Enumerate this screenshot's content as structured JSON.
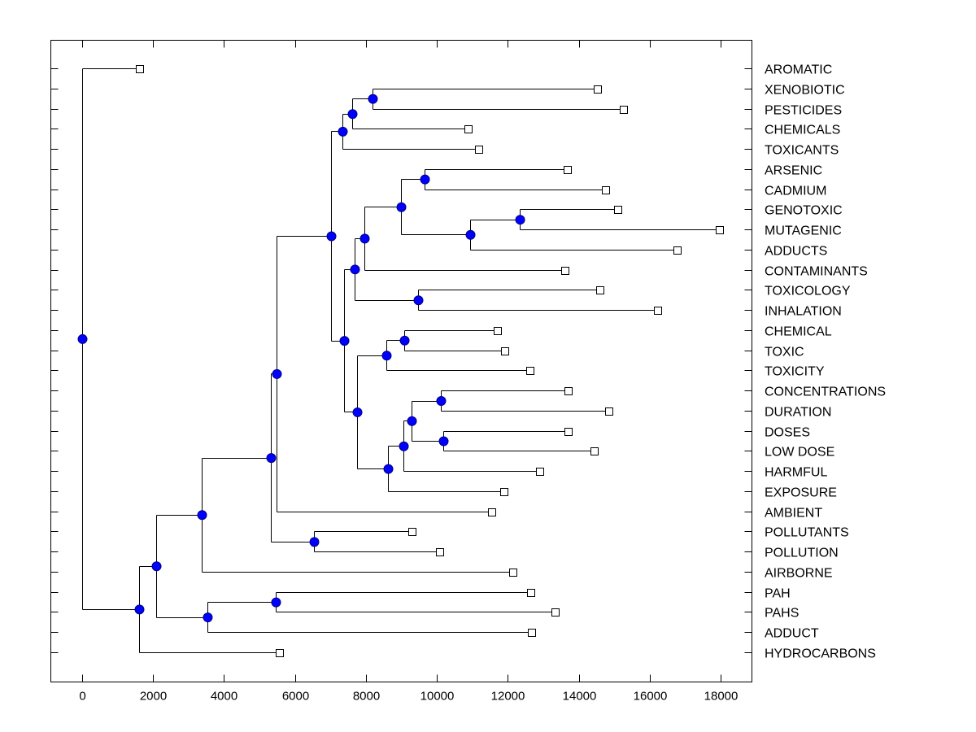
{
  "chart_data": {
    "type": "dendrogram",
    "title": "",
    "xlabel": "",
    "ylabel": "",
    "xlim": [
      -900,
      18900
    ],
    "x_ticks": [
      0,
      2000,
      4000,
      6000,
      8000,
      10000,
      12000,
      14000,
      16000,
      18000
    ],
    "x_tick_labels": [
      "0",
      "2000",
      "4000",
      "6000",
      "8000",
      "10000",
      "12000",
      "14000",
      "16000",
      "18000"
    ],
    "grid": false,
    "legend": "none",
    "colors": {
      "internal_node": "#0000ff",
      "leaf": "#ffffff",
      "line": "#000000"
    },
    "leaves": [
      {
        "label": "AROMATIC",
        "value": 1605
      },
      {
        "label": "XENOBIOTIC",
        "value": 14515
      },
      {
        "label": "PESTICIDES",
        "value": 15249
      },
      {
        "label": "CHEMICALS",
        "value": 10869
      },
      {
        "label": "TOXICANTS",
        "value": 11167
      },
      {
        "label": "ARSENIC",
        "value": 13667
      },
      {
        "label": "CADMIUM",
        "value": 14744
      },
      {
        "label": "GENOTOXIC",
        "value": 15088
      },
      {
        "label": "MUTAGENIC",
        "value": 17955
      },
      {
        "label": "ADDUCTS",
        "value": 16762
      },
      {
        "label": "CONTAMINANTS",
        "value": 13598
      },
      {
        "label": "TOXICOLOGY",
        "value": 14584
      },
      {
        "label": "INHALATION",
        "value": 16212
      },
      {
        "label": "CHEMICAL",
        "value": 11695
      },
      {
        "label": "TOXIC",
        "value": 11901
      },
      {
        "label": "TOXICITY",
        "value": 12612
      },
      {
        "label": "CONCENTRATIONS",
        "value": 13690
      },
      {
        "label": "DURATION",
        "value": 14836
      },
      {
        "label": "DOSES",
        "value": 13690
      },
      {
        "label": "LOW DOSE",
        "value": 14423
      },
      {
        "label": "HARMFUL",
        "value": 12887
      },
      {
        "label": "EXPOSURE",
        "value": 11878
      },
      {
        "label": "AMBIENT",
        "value": 11534
      },
      {
        "label": "POLLUTANTS",
        "value": 9287
      },
      {
        "label": "POLLUTION",
        "value": 10066
      },
      {
        "label": "AIRBORNE",
        "value": 12130
      },
      {
        "label": "PAH",
        "value": 12635
      },
      {
        "label": "PAHS",
        "value": 13323
      },
      {
        "label": "ADDUCT",
        "value": 12658
      },
      {
        "label": "HYDROCARBONS",
        "value": 5549
      }
    ],
    "tree": {
      "value": 0,
      "children": [
        {
          "leaf": 0
        },
        {
          "value": 1605,
          "children": [
            {
              "value": 2087,
              "children": [
                {
                  "value": 3371,
                  "children": [
                    {
                      "value": 5320,
                      "children": [
                        {
                          "value": 5480,
                          "children": [
                            {
                              "value": 7017,
                              "children": [
                                {
                                  "value": 7338,
                                  "children": [
                                    {
                                      "value": 7613,
                                      "children": [
                                        {
                                          "value": 8186,
                                          "children": [
                                            {
                                              "leaf": 1
                                            },
                                            {
                                              "leaf": 2
                                            }
                                          ]
                                        },
                                        {
                                          "leaf": 3
                                        }
                                      ]
                                    },
                                    {
                                      "leaf": 4
                                    }
                                  ]
                                },
                                {
                                  "value": 7384,
                                  "children": [
                                    {
                                      "value": 7682,
                                      "children": [
                                        {
                                          "value": 7957,
                                          "children": [
                                            {
                                              "value": 8989,
                                              "children": [
                                                {
                                                  "value": 9654,
                                                  "children": [
                                                    {
                                                      "leaf": 5
                                                    },
                                                    {
                                                      "leaf": 6
                                                    }
                                                  ]
                                                },
                                                {
                                                  "value": 10938,
                                                  "children": [
                                                    {
                                                      "value": 12337,
                                                      "children": [
                                                        {
                                                          "leaf": 7
                                                        },
                                                        {
                                                          "leaf": 8
                                                        }
                                                      ]
                                                    },
                                                    {
                                                      "leaf": 9
                                                    }
                                                  ]
                                                }
                                              ]
                                            },
                                            {
                                              "leaf": 10
                                            }
                                          ]
                                        },
                                        {
                                          "value": 9470,
                                          "children": [
                                            {
                                              "leaf": 11
                                            },
                                            {
                                              "leaf": 12
                                            }
                                          ]
                                        }
                                      ]
                                    },
                                    {
                                      "value": 7751,
                                      "children": [
                                        {
                                          "value": 8576,
                                          "children": [
                                            {
                                              "value": 9081,
                                              "children": [
                                                {
                                                  "leaf": 13
                                                },
                                                {
                                                  "leaf": 14
                                                }
                                              ]
                                            },
                                            {
                                              "leaf": 15
                                            }
                                          ]
                                        },
                                        {
                                          "value": 8622,
                                          "children": [
                                            {
                                              "value": 9058,
                                              "children": [
                                                {
                                                  "value": 9287,
                                                  "children": [
                                                    {
                                                      "value": 10112,
                                                      "children": [
                                                        {
                                                          "leaf": 16
                                                        },
                                                        {
                                                          "leaf": 17
                                                        }
                                                      ]
                                                    },
                                                    {
                                                      "value": 10181,
                                                      "children": [
                                                        {
                                                          "leaf": 18
                                                        },
                                                        {
                                                          "leaf": 19
                                                        }
                                                      ]
                                                    }
                                                  ]
                                                },
                                                {
                                                  "leaf": 20
                                                }
                                              ]
                                            },
                                            {
                                              "leaf": 21
                                            }
                                          ]
                                        }
                                      ]
                                    }
                                  ]
                                }
                              ]
                            },
                            {
                              "leaf": 22
                            }
                          ]
                        },
                        {
                          "value": 6535,
                          "children": [
                            {
                              "leaf": 23
                            },
                            {
                              "leaf": 24
                            }
                          ]
                        }
                      ]
                    },
                    {
                      "leaf": 25
                    }
                  ]
                },
                {
                  "value": 3531,
                  "children": [
                    {
                      "value": 5457,
                      "children": [
                        {
                          "leaf": 26
                        },
                        {
                          "leaf": 27
                        }
                      ]
                    },
                    {
                      "leaf": 28
                    }
                  ]
                }
              ]
            },
            {
              "leaf": 29
            }
          ]
        }
      ]
    }
  }
}
